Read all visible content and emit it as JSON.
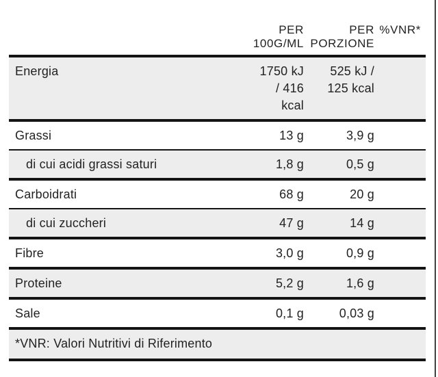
{
  "table": {
    "header": {
      "per_100g": "PER\n100G/ML",
      "per_porzione": "PER\nPORZIONE",
      "vnr": "%VNR*"
    },
    "rows": [
      {
        "label": "Energia",
        "per_100g": "1750 kJ\n/ 416\nkcal",
        "per_porzione": "525 kJ /\n125 kcal",
        "vnr": ""
      },
      {
        "label": "Grassi",
        "per_100g": "13 g",
        "per_porzione": "3,9 g",
        "vnr": ""
      },
      {
        "label": "di cui acidi grassi saturi",
        "per_100g": "1,8 g",
        "per_porzione": "0,5 g",
        "vnr": ""
      },
      {
        "label": "Carboidrati",
        "per_100g": "68 g",
        "per_porzione": "20 g",
        "vnr": ""
      },
      {
        "label": "di cui zuccheri",
        "per_100g": "47 g",
        "per_porzione": "14 g",
        "vnr": ""
      },
      {
        "label": "Fibre",
        "per_100g": "3,0 g",
        "per_porzione": "0,9 g",
        "vnr": ""
      },
      {
        "label": "Proteine",
        "per_100g": "5,2 g",
        "per_porzione": "1,6 g",
        "vnr": ""
      },
      {
        "label": "Sale",
        "per_100g": "0,1 g",
        "per_porzione": "0,03 g",
        "vnr": ""
      }
    ],
    "footnote": "*VNR: Valori Nutritivi di Riferimento"
  },
  "colors": {
    "shaded_row": "#ededed",
    "rule": "#141414",
    "text": "#222222",
    "page_border": "#3f3f3f"
  }
}
